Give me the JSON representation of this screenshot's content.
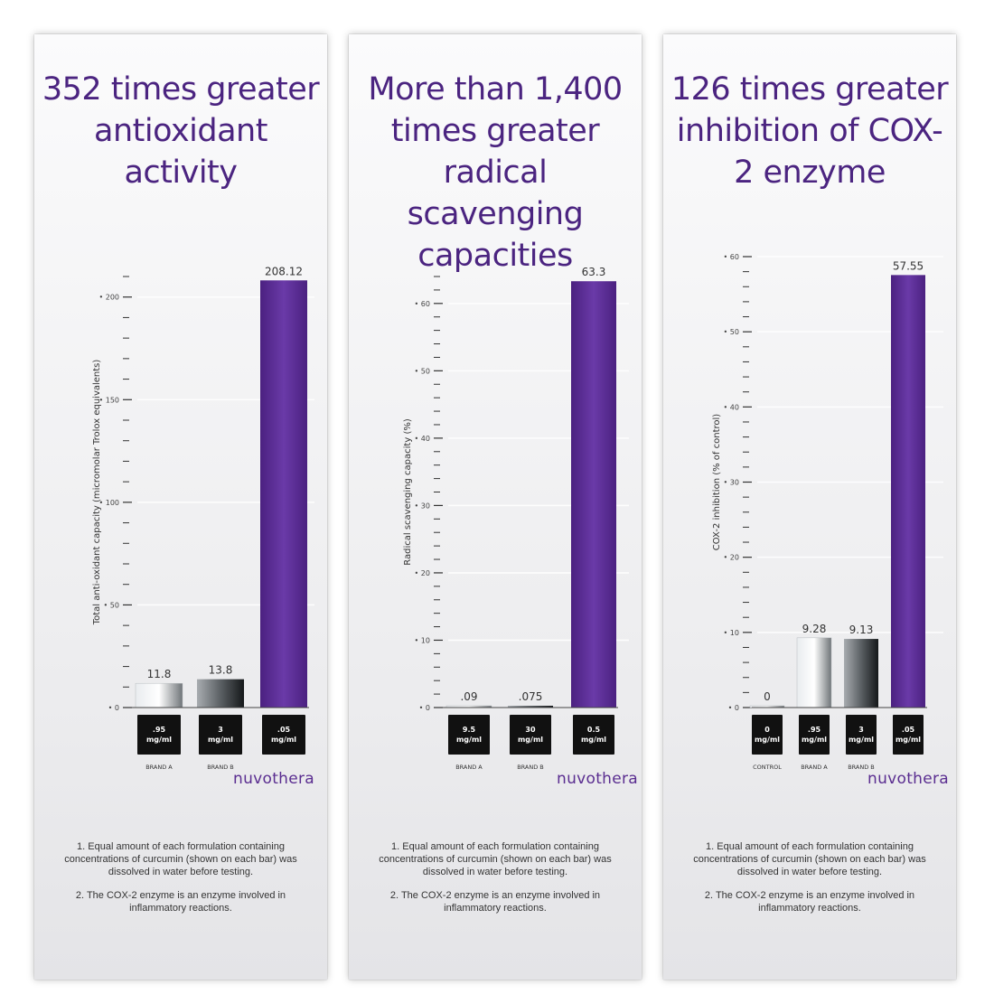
{
  "brand": "nuvothera",
  "notes": [
    "1. Equal amount of each formulation containing concentrations of curcumin (shown on each bar) was dissolved in water before testing.",
    "2. The COX-2 enzyme is an enzyme involved in inflammatory reactions."
  ],
  "colors": {
    "accent": "#5b2c95",
    "title": "#4b2480"
  },
  "chart_data": [
    {
      "type": "bar",
      "title": "352 times greater antioxidant activity",
      "ylabel": "Total anti-oxidant capacity (micromolar Trolox equivalents)",
      "ylim": [
        0,
        210
      ],
      "ticks": [
        0,
        50,
        100,
        150,
        200
      ],
      "categories": [
        "BRAND A",
        "BRAND B",
        ""
      ],
      "values": [
        11.8,
        13.8,
        208.12
      ],
      "value_labels": [
        "11.8",
        "13.8",
        "208.12"
      ],
      "doses": [
        [
          ".95",
          "mg/ml"
        ],
        [
          "3",
          "mg/ml"
        ],
        [
          ".05",
          "mg/ml"
        ]
      ],
      "bar_styles": [
        "light",
        "dark",
        "accent"
      ],
      "grid": true
    },
    {
      "type": "bar",
      "title": "More than 1,400 times greater radical scavenging capacities",
      "ylabel": "Radical scavenging capacity (%)",
      "ylim": [
        0,
        64
      ],
      "ticks": [
        0,
        10,
        20,
        30,
        40,
        50,
        60
      ],
      "categories": [
        "BRAND A",
        "BRAND B",
        ""
      ],
      "values": [
        0.09,
        0.075,
        63.3
      ],
      "value_labels": [
        ".09",
        ".075",
        "63.3"
      ],
      "doses": [
        [
          "9.5",
          "mg/ml"
        ],
        [
          "30",
          "mg/ml"
        ],
        [
          "0.5",
          "mg/ml"
        ]
      ],
      "bar_styles": [
        "light",
        "dark",
        "accent"
      ],
      "grid": true
    },
    {
      "type": "bar",
      "title": "126 times greater inhibition of COX-2 enzyme",
      "ylabel": "COX-2 inhibition (% of control)",
      "ylim": [
        0,
        60
      ],
      "ticks": [
        0,
        10,
        20,
        30,
        40,
        50,
        60
      ],
      "categories": [
        "CONTROL",
        "BRAND A",
        "BRAND B",
        ""
      ],
      "values": [
        0,
        9.28,
        9.13,
        57.55
      ],
      "value_labels": [
        "0",
        "9.28",
        "9.13",
        "57.55"
      ],
      "doses": [
        [
          "0",
          "mg/ml"
        ],
        [
          ".95",
          "mg/ml"
        ],
        [
          "3",
          "mg/ml"
        ],
        [
          ".05",
          "mg/ml"
        ]
      ],
      "bar_styles": [
        "light",
        "light",
        "dark",
        "accent"
      ],
      "grid": true
    }
  ]
}
